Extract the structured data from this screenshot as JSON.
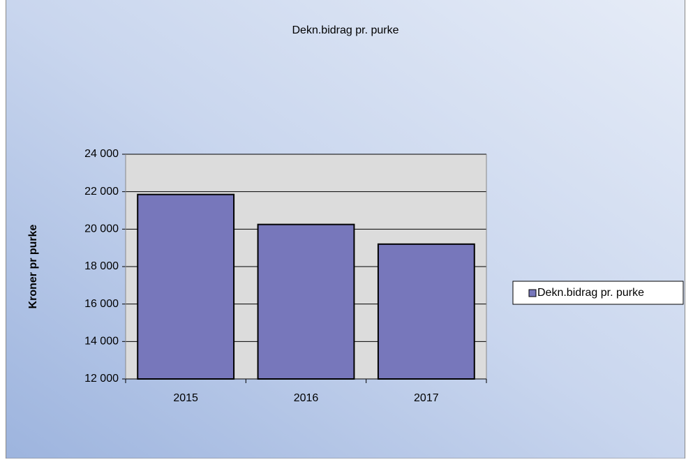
{
  "chart_data": {
    "type": "bar",
    "title": "Dekn.bidrag pr. purke",
    "y_label": "Kroner pr purke",
    "categories": [
      "2015",
      "2016",
      "2017"
    ],
    "series": [
      {
        "name": "Dekn.bidrag pr. purke",
        "color": "#7777bb",
        "values": [
          21850,
          20250,
          19200
        ]
      }
    ],
    "ylim": [
      12000,
      24000
    ],
    "yticks": [
      {
        "value": 12000,
        "label": "12 000"
      },
      {
        "value": 14000,
        "label": "14 000"
      },
      {
        "value": 16000,
        "label": "16 000"
      },
      {
        "value": 18000,
        "label": "18 000"
      },
      {
        "value": 20000,
        "label": "20 000"
      },
      {
        "value": 22000,
        "label": "22 000"
      },
      {
        "value": 24000,
        "label": "24 000"
      }
    ],
    "grid": true,
    "legend": "right"
  }
}
